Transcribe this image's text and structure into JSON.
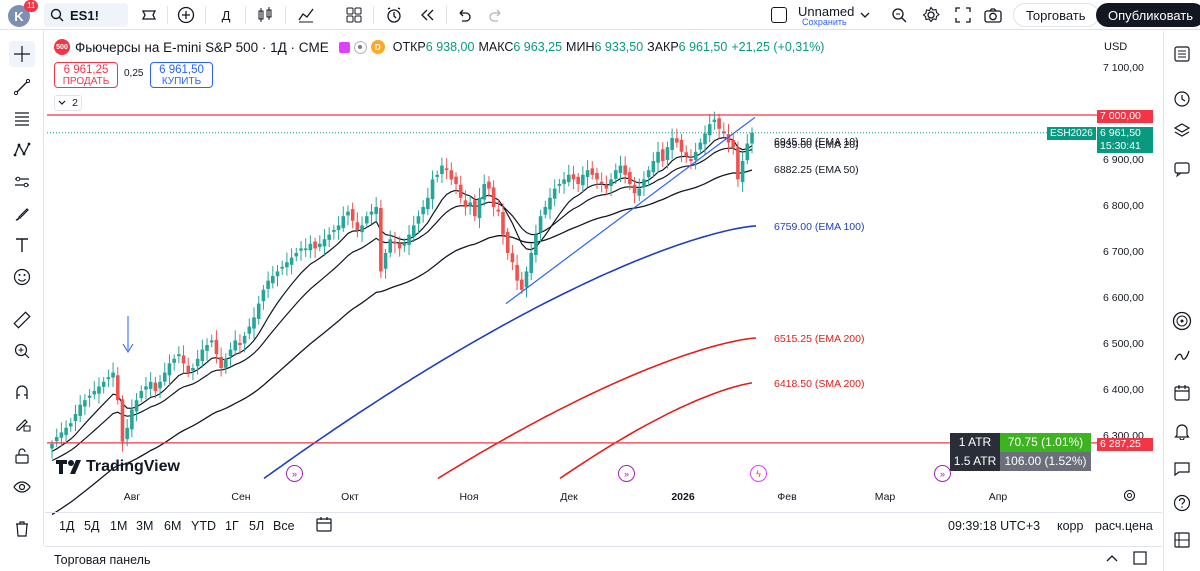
{
  "topbar": {
    "avatar_letter": "K",
    "notif_count": "11",
    "symbol": "ES1!",
    "interval": "Д",
    "layout_name": "Unnamed",
    "save_label": "Сохранить",
    "trade_label": "Торговать",
    "publish_label": "Опубликовать"
  },
  "legend": {
    "badge": "500",
    "title": "Фьючерсы на E-mini S&P 500 · 1Д · CME",
    "open_label": "ОТКР",
    "open": "6 938,00",
    "high_label": "МАКС",
    "high": "6 963,25",
    "low_label": "МИН",
    "low": "6 933,50",
    "close_label": "ЗАКР",
    "close": "6 961,50",
    "change": "+21,25 (+0,31%)",
    "indicator_count": "2"
  },
  "trade": {
    "sell_price": "6 961,25",
    "sell_label": "ПРОДАТЬ",
    "spread": "0,25",
    "buy_price": "6 961,50",
    "buy_label": "КУПИТЬ"
  },
  "currency": "USD",
  "price_axis": [
    "7 100,00",
    "7 000,00",
    "6 900,00",
    "6 800,00",
    "6 700,00",
    "6 600,00",
    "6 500,00",
    "6 400,00",
    "6 300,00"
  ],
  "price_tags": {
    "line_upper": "7 000,00",
    "ticker": "ESH2026",
    "last": "6 961,50",
    "countdown": "15:30:41",
    "line_lower": "6 287,25"
  },
  "ema_labels": {
    "ema10_overlap": "6945.50 (EMA 10)",
    "ema20_overlap": "6939.00 (EMA 20)",
    "ema50": "6882.25 (EMA 50)",
    "ema100": "6759.00 (EMA 100)",
    "ema200": "6515.25 (EMA 200)",
    "sma200": "6418.50 (SMA 200)"
  },
  "time_axis": [
    "Авг",
    "Сен",
    "Окт",
    "Ноя",
    "Дек",
    "2026",
    "Фев",
    "Мар",
    "Апр"
  ],
  "atr": [
    {
      "label": "1 ATR",
      "value": "70.75 (1.01%)"
    },
    {
      "label": "1.5 ATR",
      "value": "106.00 (1.52%)"
    }
  ],
  "watermark": "TradingView",
  "bottombar": {
    "ranges": [
      "1Д",
      "5Д",
      "1М",
      "3М",
      "6М",
      "YTD",
      "1Г",
      "5Л",
      "Все"
    ],
    "clock": "09:39:18 UTC+3",
    "adj": "корр",
    "calc": "расч.цена"
  },
  "panel_title": "Торговая панель",
  "colors": {
    "up": "#26a69a",
    "down": "#ef5350",
    "ema100": "#1e3fbf",
    "ema200": "#e0201b",
    "resistance": "#f23645",
    "trendline": "#2962ff",
    "accent": "#2962ff"
  },
  "chart_data": {
    "type": "candlestick",
    "ylim": [
      6230,
      7130
    ],
    "x_range": [
      "2025-07-01",
      "2026-04-15"
    ],
    "horizontal_lines": [
      7000,
      6287.25
    ],
    "series": [
      {
        "name": "EMA 10",
        "last": 6945.5
      },
      {
        "name": "EMA 20",
        "last": 6939.0
      },
      {
        "name": "EMA 50",
        "last": 6882.25
      },
      {
        "name": "EMA 100",
        "last": 6759.0
      },
      {
        "name": "EMA 200",
        "last": 6515.25
      },
      {
        "name": "SMA 200",
        "last": 6418.5
      }
    ],
    "closes_approx": [
      6285,
      6300,
      6310,
      6320,
      6330,
      6350,
      6370,
      6380,
      6390,
      6400,
      6410,
      6420,
      6430,
      6440,
      6380,
      6290,
      6320,
      6360,
      6380,
      6400,
      6410,
      6420,
      6400,
      6420,
      6440,
      6460,
      6470,
      6480,
      6460,
      6440,
      6450,
      6470,
      6490,
      6500,
      6510,
      6480,
      6450,
      6470,
      6490,
      6510,
      6500,
      6520,
      6540,
      6560,
      6590,
      6620,
      6640,
      6650,
      6660,
      6670,
      6680,
      6690,
      6700,
      6710,
      6710,
      6720,
      6710,
      6720,
      6730,
      6740,
      6750,
      6760,
      6780,
      6790,
      6770,
      6750,
      6760,
      6780,
      6790,
      6800,
      6660,
      6700,
      6730,
      6720,
      6710,
      6720,
      6740,
      6760,
      6780,
      6800,
      6820,
      6860,
      6870,
      6890,
      6880,
      6860,
      6850,
      6820,
      6800,
      6810,
      6780,
      6820,
      6850,
      6840,
      6800,
      6790,
      6740,
      6700,
      6680,
      6640,
      6620,
      6660,
      6700,
      6740,
      6780,
      6800,
      6820,
      6840,
      6850,
      6860,
      6870,
      6860,
      6850,
      6870,
      6880,
      6870,
      6860,
      6850,
      6840,
      6860,
      6880,
      6890,
      6870,
      6850,
      6830,
      6840,
      6860,
      6880,
      6900,
      6920,
      6900,
      6930,
      6950,
      6940,
      6920,
      6910,
      6900,
      6920,
      6940,
      6960,
      6980,
      6990,
      6970,
      6960,
      6940,
      6930,
      6860,
      6900,
      6938,
      6961.5
    ]
  }
}
